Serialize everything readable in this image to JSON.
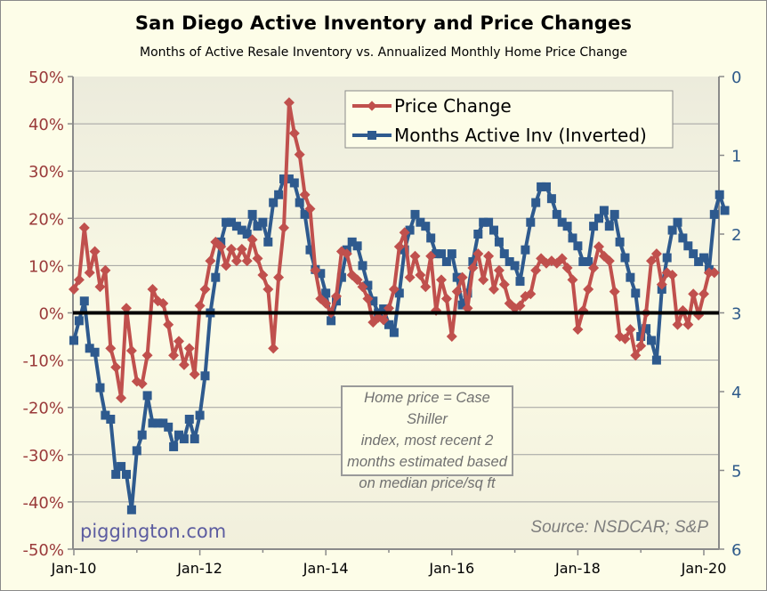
{
  "chart_data": {
    "type": "line",
    "title": "San Diego Active Inventory and Price Changes",
    "subtitle": "Months of Active Resale Inventory vs. Annualized Monthly Home Price Change",
    "xlabel": "",
    "ylabel_left": "",
    "ylabel_right": "",
    "x_start": "Jan-10",
    "x_ticks": [
      "Jan-10",
      "Jan-12",
      "Jan-14",
      "Jan-16",
      "Jan-18",
      "Jan-20"
    ],
    "y_left": {
      "ticks": [
        "50%",
        "40%",
        "30%",
        "20%",
        "10%",
        "0%",
        "-10%",
        "-20%",
        "-30%",
        "-40%",
        "-50%"
      ],
      "range": [
        -50,
        50
      ],
      "unit": "%"
    },
    "y_right": {
      "ticks": [
        "0",
        "1",
        "2",
        "3",
        "4",
        "5",
        "6"
      ],
      "range": [
        0,
        6
      ],
      "inverted": true,
      "unit": "months"
    },
    "grid": true,
    "legend_position": "top-right",
    "series": [
      {
        "name": "Price Change",
        "axis": "left",
        "color": "#c0504d",
        "marker": "diamond",
        "values": [
          5,
          7,
          18,
          8.5,
          13,
          5.5,
          9,
          -7.5,
          -11.5,
          -18,
          1,
          -8,
          -14.5,
          -15,
          -9,
          5,
          2.5,
          2,
          -2.5,
          -9,
          -6,
          -11,
          -7.5,
          -13,
          1.5,
          5,
          11,
          15,
          14,
          10,
          13.5,
          11,
          13.5,
          11,
          15.5,
          11.5,
          8,
          5,
          -7.5,
          7.5,
          18,
          44.5,
          38,
          33.5,
          25,
          22,
          9,
          3,
          2,
          0,
          3.5,
          13,
          12.5,
          8,
          7,
          5.5,
          3,
          -2,
          -1,
          -1.5,
          1,
          5,
          14,
          17,
          7.5,
          12,
          8,
          5.5,
          12,
          0.5,
          7,
          3,
          -5,
          4.5,
          7.5,
          1,
          9.5,
          12.5,
          7,
          12,
          5,
          9,
          6,
          2,
          1,
          1.5,
          3.5,
          4,
          9,
          11.5,
          10.5,
          11,
          10.5,
          11.5,
          9.5,
          7,
          -3.5,
          0.5,
          5,
          9.5,
          14,
          12,
          11,
          4.5,
          -5,
          -5.5,
          -3.5,
          -9,
          -7,
          0,
          11,
          12.5,
          6,
          8.5,
          8,
          -2.5,
          0.5,
          -2.5,
          4,
          -0.5,
          4,
          8.5,
          8.5
        ],
        "first_date": "Jan-10"
      },
      {
        "name": "Months Active Inv (Inverted)",
        "axis": "right",
        "color": "#2e5a8e",
        "marker": "square",
        "values": [
          3.35,
          3.1,
          2.85,
          3.45,
          3.5,
          3.95,
          4.3,
          4.35,
          5.05,
          4.95,
          5.05,
          5.5,
          4.75,
          4.55,
          4.05,
          4.4,
          4.4,
          4.4,
          4.45,
          4.7,
          4.55,
          4.6,
          4.35,
          4.6,
          4.3,
          3.8,
          3.0,
          2.55,
          2.1,
          1.85,
          1.85,
          1.9,
          1.95,
          2.0,
          1.75,
          1.9,
          1.85,
          2.1,
          1.6,
          1.5,
          1.3,
          1.3,
          1.35,
          1.6,
          1.75,
          2.2,
          2.45,
          2.5,
          2.75,
          3.1,
          2.85,
          2.55,
          2.2,
          2.1,
          2.15,
          2.4,
          2.65,
          2.85,
          3.0,
          2.95,
          3.15,
          3.25,
          2.75,
          2.2,
          1.95,
          1.75,
          1.85,
          1.9,
          2.05,
          2.25,
          2.25,
          2.35,
          2.25,
          2.55,
          2.9,
          2.75,
          2.35,
          2.0,
          1.85,
          1.85,
          1.95,
          2.1,
          2.25,
          2.35,
          2.4,
          2.6,
          2.2,
          1.85,
          1.6,
          1.4,
          1.4,
          1.55,
          1.75,
          1.85,
          1.9,
          2.05,
          2.15,
          2.35,
          2.35,
          1.9,
          1.8,
          1.7,
          1.9,
          1.75,
          2.1,
          2.3,
          2.55,
          2.75,
          3.3,
          3.2,
          3.35,
          3.6,
          2.7,
          2.3,
          1.95,
          1.85,
          2.05,
          2.15,
          2.25,
          2.35,
          2.3,
          2.45,
          1.75,
          1.5,
          1.7
        ]
      }
    ],
    "reference_line": {
      "axis": "left",
      "value": 0,
      "color": "#000000"
    },
    "annotation": [
      "Home price = Case Shiller",
      "index, most recent 2",
      "months estimated based",
      "on median price/sq ft"
    ],
    "watermark": "piggington.com",
    "source": "Source: NSDCAR; S&P"
  }
}
